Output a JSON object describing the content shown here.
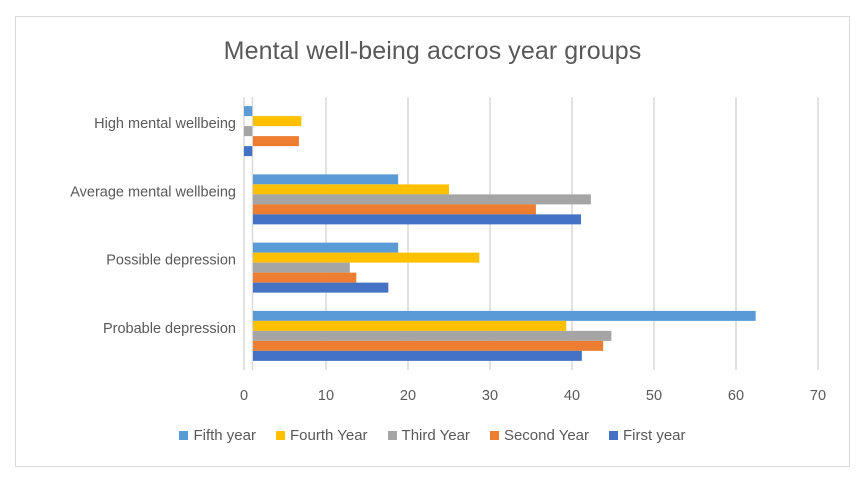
{
  "chart_data": {
    "type": "bar",
    "orientation": "horizontal",
    "title": "Mental well-being accros year groups",
    "xlabel": "",
    "ylabel": "",
    "xlim": [
      0,
      70
    ],
    "x_ticks": [
      0,
      10,
      20,
      30,
      40,
      50,
      60,
      70
    ],
    "grid": true,
    "legend_position": "bottom",
    "categories": [
      "High mental wellbeing",
      "Average mental wellbeing",
      "Possible depression",
      "Probable depression"
    ],
    "series": [
      {
        "name": "Fifth year",
        "color": "#5b9bd5",
        "values": [
          1.0,
          18.8,
          18.8,
          62.4
        ]
      },
      {
        "name": "Fourth Year",
        "color": "#ffc000",
        "values": [
          7.0,
          25.0,
          28.7,
          39.3
        ]
      },
      {
        "name": "Third Year",
        "color": "#a5a5a5",
        "values": [
          1.0,
          42.3,
          12.9,
          44.8
        ]
      },
      {
        "name": "Second Year",
        "color": "#ed7d31",
        "values": [
          6.7,
          35.6,
          13.7,
          43.8
        ]
      },
      {
        "name": "First year",
        "color": "#4472c4",
        "values": [
          1.0,
          41.1,
          17.6,
          41.2
        ]
      }
    ]
  }
}
